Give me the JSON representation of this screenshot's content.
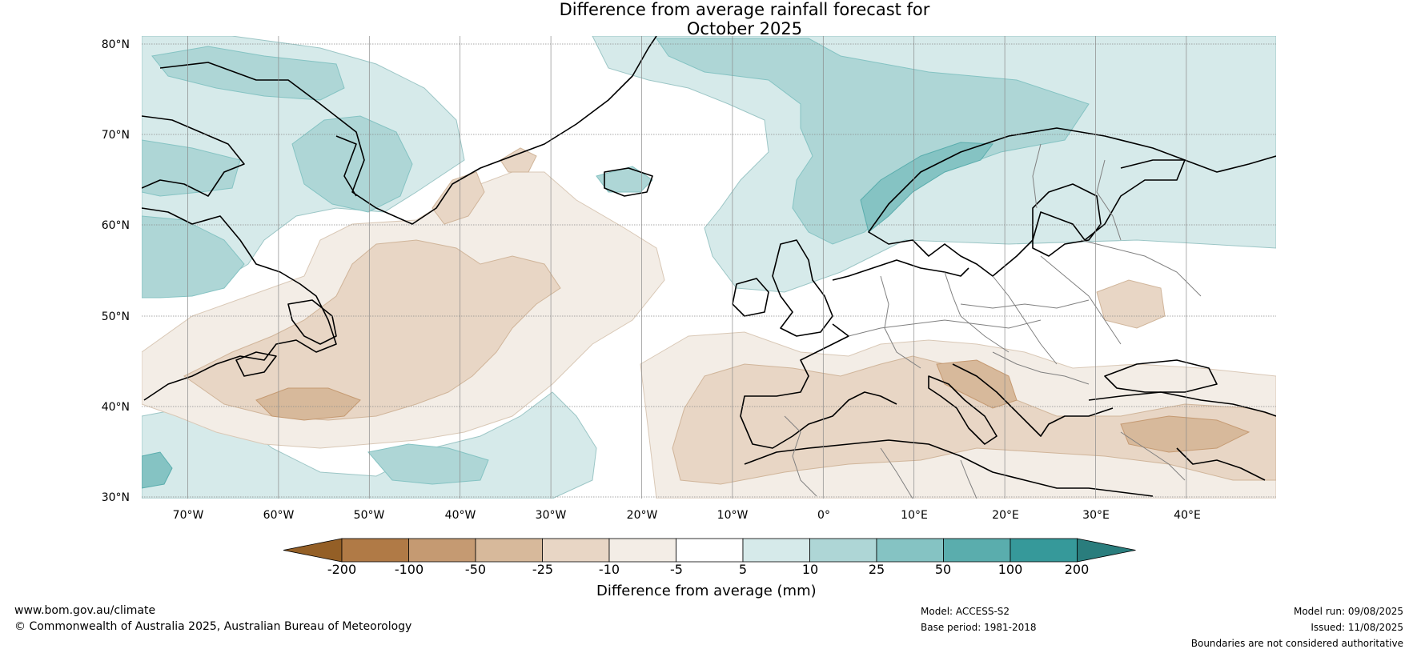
{
  "title_line1": "Difference from average rainfall forecast for",
  "title_line2": "October 2025",
  "lat_labels": [
    "80°N",
    "70°N",
    "60°N",
    "50°N",
    "40°N",
    "30°N"
  ],
  "lon_labels": [
    "70°W",
    "60°W",
    "50°W",
    "40°W",
    "30°W",
    "20°W",
    "10°W",
    "0°",
    "10°E",
    "20°E",
    "30°E",
    "40°E"
  ],
  "colorbar": {
    "title": "Difference from average (mm)",
    "tick_labels": [
      "-200",
      "-100",
      "-50",
      "-25",
      "-10",
      "-5",
      "5",
      "10",
      "25",
      "50",
      "100",
      "200"
    ],
    "colors": [
      "#945f26",
      "#b07a46",
      "#c59a72",
      "#d7b99b",
      "#e8d6c5",
      "#f3ede6",
      "#ffffff",
      "#d6eaea",
      "#aed6d6",
      "#85c3c3",
      "#5aadad",
      "#36999a",
      "#2a7d7d"
    ]
  },
  "footer": {
    "website": "www.bom.gov.au/climate",
    "copyright": "© Commonwealth of Australia 2025, Australian Bureau of Meteorology",
    "model": "Model: ACCESS-S2",
    "base_period": "Base period: 1981-2018",
    "model_run": "Model run: 09/08/2025",
    "issued": "Issued: 11/08/2025",
    "disclaimer": "Boundaries are not considered authoritative"
  }
}
